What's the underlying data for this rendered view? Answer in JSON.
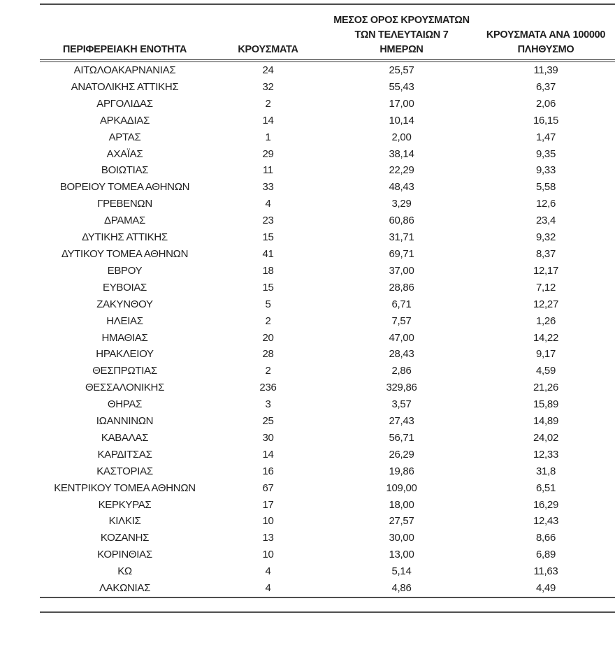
{
  "colors": {
    "text": "#1f1f1f",
    "rule": "#4a4a4a",
    "header_rule": "#3d3d3d",
    "background": "#ffffff"
  },
  "table": {
    "headers": [
      "ΠΕΡΙΦΕΡΕΙΑΚΗ ΕΝΟΤΗΤΑ",
      "ΚΡΟΥΣΜΑΤΑ",
      "ΜΕΣΟΣ ΟΡΟΣ ΚΡΟΥΣΜΑΤΩΝ\nΤΩΝ ΤΕΛΕΥΤΑΙΩΝ 7\nΗΜΕΡΩΝ",
      "ΚΡΟΥΣΜΑΤΑ ΑΝΑ 100000\nΠΛΗΘΥΣΜΟ"
    ],
    "column_keys": [
      "region",
      "cases",
      "avg7days",
      "per100k"
    ],
    "rows": [
      [
        "ΑΙΤΩΛΟΑΚΑΡΝΑΝΙΑΣ",
        "24",
        "25,57",
        "11,39"
      ],
      [
        "ΑΝΑΤΟΛΙΚΗΣ ΑΤΤΙΚΗΣ",
        "32",
        "55,43",
        "6,37"
      ],
      [
        "ΑΡΓΟΛΙΔΑΣ",
        "2",
        "17,00",
        "2,06"
      ],
      [
        "ΑΡΚΑΔΙΑΣ",
        "14",
        "10,14",
        "16,15"
      ],
      [
        "ΑΡΤΑΣ",
        "1",
        "2,00",
        "1,47"
      ],
      [
        "ΑΧΑΪΑΣ",
        "29",
        "38,14",
        "9,35"
      ],
      [
        "ΒΟΙΩΤΙΑΣ",
        "11",
        "22,29",
        "9,33"
      ],
      [
        "ΒΟΡΕΙΟΥ ΤΟΜΕΑ ΑΘΗΝΩΝ",
        "33",
        "48,43",
        "5,58"
      ],
      [
        "ΓΡΕΒΕΝΩΝ",
        "4",
        "3,29",
        "12,6"
      ],
      [
        "ΔΡΑΜΑΣ",
        "23",
        "60,86",
        "23,4"
      ],
      [
        "ΔΥΤΙΚΗΣ ΑΤΤΙΚΗΣ",
        "15",
        "31,71",
        "9,32"
      ],
      [
        "ΔΥΤΙΚΟΥ ΤΟΜΕΑ ΑΘΗΝΩΝ",
        "41",
        "69,71",
        "8,37"
      ],
      [
        "ΕΒΡΟΥ",
        "18",
        "37,00",
        "12,17"
      ],
      [
        "ΕΥΒΟΙΑΣ",
        "15",
        "28,86",
        "7,12"
      ],
      [
        "ΖΑΚΥΝΘΟΥ",
        "5",
        "6,71",
        "12,27"
      ],
      [
        "ΗΛΕΙΑΣ",
        "2",
        "7,57",
        "1,26"
      ],
      [
        "ΗΜΑΘΙΑΣ",
        "20",
        "47,00",
        "14,22"
      ],
      [
        "ΗΡΑΚΛΕΙΟΥ",
        "28",
        "28,43",
        "9,17"
      ],
      [
        "ΘΕΣΠΡΩΤΙΑΣ",
        "2",
        "2,86",
        "4,59"
      ],
      [
        "ΘΕΣΣΑΛΟΝΙΚΗΣ",
        "236",
        "329,86",
        "21,26"
      ],
      [
        "ΘΗΡΑΣ",
        "3",
        "3,57",
        "15,89"
      ],
      [
        "ΙΩΑΝΝΙΝΩΝ",
        "25",
        "27,43",
        "14,89"
      ],
      [
        "ΚΑΒΑΛΑΣ",
        "30",
        "56,71",
        "24,02"
      ],
      [
        "ΚΑΡΔΙΤΣΑΣ",
        "14",
        "26,29",
        "12,33"
      ],
      [
        "ΚΑΣΤΟΡΙΑΣ",
        "16",
        "19,86",
        "31,8"
      ],
      [
        "ΚΕΝΤΡΙΚΟΥ ΤΟΜΕΑ ΑΘΗΝΩΝ",
        "67",
        "109,00",
        "6,51"
      ],
      [
        "ΚΕΡΚΥΡΑΣ",
        "17",
        "18,00",
        "16,29"
      ],
      [
        "ΚΙΛΚΙΣ",
        "10",
        "27,57",
        "12,43"
      ],
      [
        "ΚΟΖΑΝΗΣ",
        "13",
        "30,00",
        "8,66"
      ],
      [
        "ΚΟΡΙΝΘΙΑΣ",
        "10",
        "13,00",
        "6,89"
      ],
      [
        "ΚΩ",
        "4",
        "5,14",
        "11,63"
      ],
      [
        "ΛΑΚΩΝΙΑΣ",
        "4",
        "4,86",
        "4,49"
      ]
    ]
  }
}
